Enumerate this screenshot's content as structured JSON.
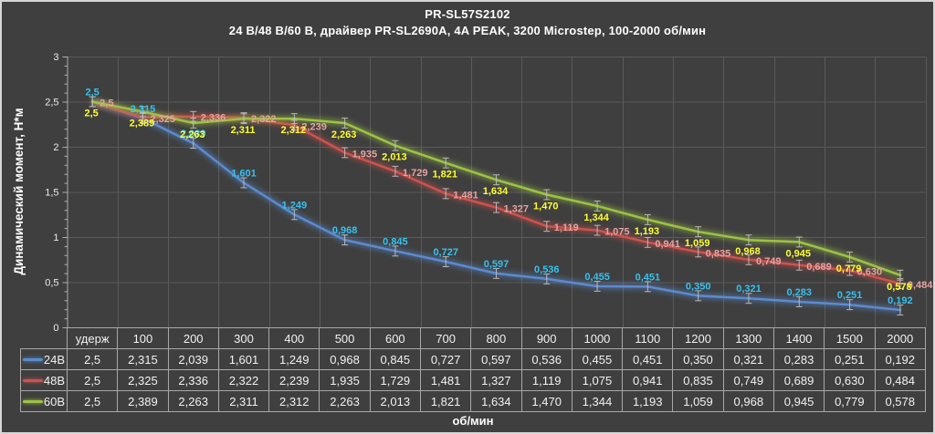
{
  "chart_data": {
    "type": "line",
    "title": "PR-SL57S2102",
    "subtitle": "24 В/48 В/60 В, драйвер PR-SL2690A, 4A PEAK, 3200 Microstep, 100-2000 об/мин",
    "ylabel": "Динамический момент, Н*м",
    "xlabel": "об/мин",
    "ylim": [
      0,
      3
    ],
    "ytick_step": 0.5,
    "ytick_labels": [
      "0",
      "0,5",
      "1",
      "1,5",
      "2",
      "2,5",
      "3"
    ],
    "grid": true,
    "error_bars": true,
    "legend_position": "table-left",
    "decimal_separator": ",",
    "categories": [
      "удерж",
      "100",
      "200",
      "300",
      "400",
      "500",
      "600",
      "700",
      "800",
      "900",
      "1000",
      "1100",
      "1200",
      "1300",
      "1400",
      "1500",
      "2000"
    ],
    "series": [
      {
        "name": "24В",
        "color": "#5B8BD0",
        "label_color": "#35C2F2",
        "label_pos": "above",
        "values": [
          2.5,
          2.315,
          2.039,
          1.601,
          1.249,
          0.968,
          0.845,
          0.727,
          0.597,
          0.536,
          0.455,
          0.451,
          0.35,
          0.321,
          0.283,
          0.251,
          0.192
        ],
        "labels": [
          "2,5",
          "2,315",
          "2,039",
          "1,601",
          "1,249",
          "0,968",
          "0,845",
          "0,727",
          "0,597",
          "0,536",
          "0,455",
          "0,451",
          "0,350",
          "0,321",
          "0,283",
          "0,251",
          "0,192"
        ]
      },
      {
        "name": "48В",
        "color": "#CE524E",
        "label_color": "#E5A3A1",
        "label_pos": "right",
        "values": [
          2.5,
          2.325,
          2.336,
          2.322,
          2.239,
          1.935,
          1.729,
          1.481,
          1.327,
          1.119,
          1.075,
          0.941,
          0.835,
          0.749,
          0.689,
          0.63,
          0.484
        ],
        "labels": [
          "2,5",
          "2,325",
          "2,336",
          "2,322",
          "2,239",
          "1,935",
          "1,729",
          "1,481",
          "1,327",
          "1,119",
          "1,075",
          "0,941",
          "0,835",
          "0,749",
          "0,689",
          "0,630",
          "0,484"
        ]
      },
      {
        "name": "60В",
        "color": "#9DC244",
        "label_color": "#FFFF2E",
        "label_pos": "below",
        "values": [
          2.5,
          2.389,
          2.263,
          2.311,
          2.312,
          2.263,
          2.013,
          1.821,
          1.634,
          1.47,
          1.344,
          1.193,
          1.059,
          0.968,
          0.945,
          0.779,
          0.578
        ],
        "labels": [
          "2,5",
          "2,389",
          "2,263",
          "2,311",
          "2,312",
          "2,263",
          "2,013",
          "1,821",
          "1,634",
          "1,470",
          "1,344",
          "1,193",
          "1,059",
          "0,968",
          "0,945",
          "0,779",
          "0,578"
        ]
      }
    ]
  },
  "colors": {
    "background": "#3F3F3F",
    "frame_border": "#D6D6D6",
    "gridline": "#5A5A5A",
    "axis": "#ACACAC",
    "tick_label": "#ECECEC",
    "table_border": "#A8A8A8",
    "text": "#FFFFFF",
    "error_bar": "#C4C4C4"
  }
}
